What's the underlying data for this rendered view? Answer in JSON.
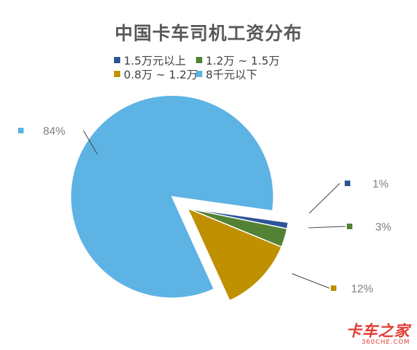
{
  "chart_data": {
    "type": "pie",
    "title": "中国卡车司机工资分布",
    "legend_position": "top",
    "slices": [
      {
        "name": "1.5万元以上",
        "value": 1,
        "label": "1%",
        "color": "#2e5597"
      },
      {
        "name": "1.2万 ~ 1.5万",
        "value": 3,
        "label": "3%",
        "color": "#548235"
      },
      {
        "name": "0.8万 ~ 1.2万",
        "value": 12,
        "label": "12%",
        "color": "#bf9000"
      },
      {
        "name": "8千元以下",
        "value": 84,
        "label": "84%",
        "color": "#5db3e4"
      }
    ]
  },
  "watermark": {
    "main": "卡车之家",
    "sub": "360CHE.COM"
  }
}
